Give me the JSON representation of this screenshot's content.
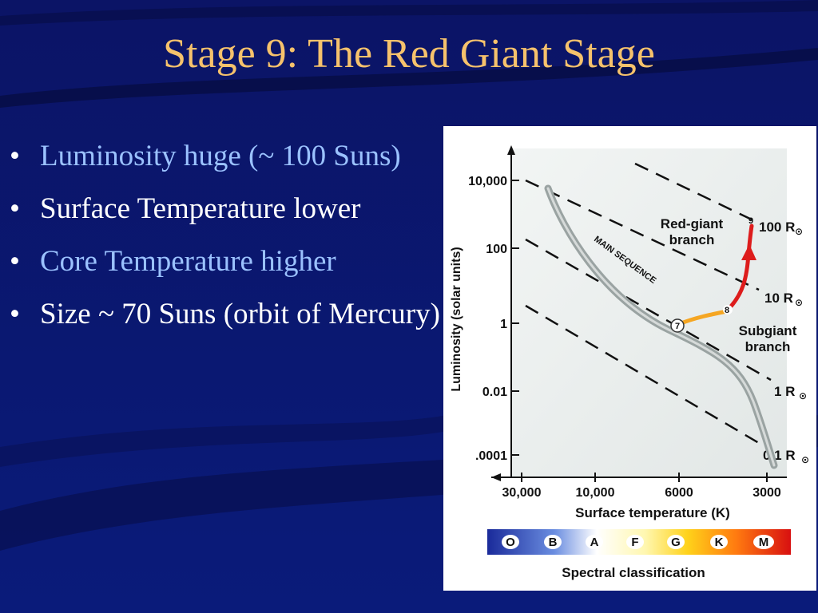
{
  "slide": {
    "title": "Stage 9: The Red Giant Stage",
    "bullets": [
      {
        "text": "Luminosity huge (~ 100 Suns)",
        "color": "#9bc2ff"
      },
      {
        "text": "Surface Temperature lower",
        "color": "#ffffff"
      },
      {
        "text": "Core Temperature higher",
        "color": "#9bc2ff"
      },
      {
        "text": "Size ~ 70 Suns (orbit of Mercury)",
        "color": "#ffffff"
      }
    ],
    "bullet_glyph": "•",
    "accent_color": "#f6c26c"
  },
  "diagram": {
    "y_axis_label": "Luminosity (solar units)",
    "y_ticks": [
      "10,000",
      "100",
      "1",
      "0.01",
      ".0001"
    ],
    "x_axis_label": "Surface temperature (K)",
    "x_ticks": [
      "30,000",
      "10,000",
      "6000",
      "3000"
    ],
    "radius_labels": [
      "100 R",
      "10 R",
      "1 R",
      "0.1 R"
    ],
    "sun_symbol": "⊙",
    "main_sequence_label": "MAIN SEQUENCE",
    "red_giant_label": [
      "Red-giant",
      "branch"
    ],
    "subgiant_label": [
      "Subgiant",
      "branch"
    ],
    "stage_points": [
      "7",
      "8",
      "9"
    ],
    "spectral_classes": [
      "O",
      "B",
      "A",
      "F",
      "G",
      "K",
      "M"
    ],
    "spectral_label": "Spectral classification",
    "track_colors": {
      "subgiant": "#f5a623",
      "red_giant": "#dd1c1c"
    }
  }
}
